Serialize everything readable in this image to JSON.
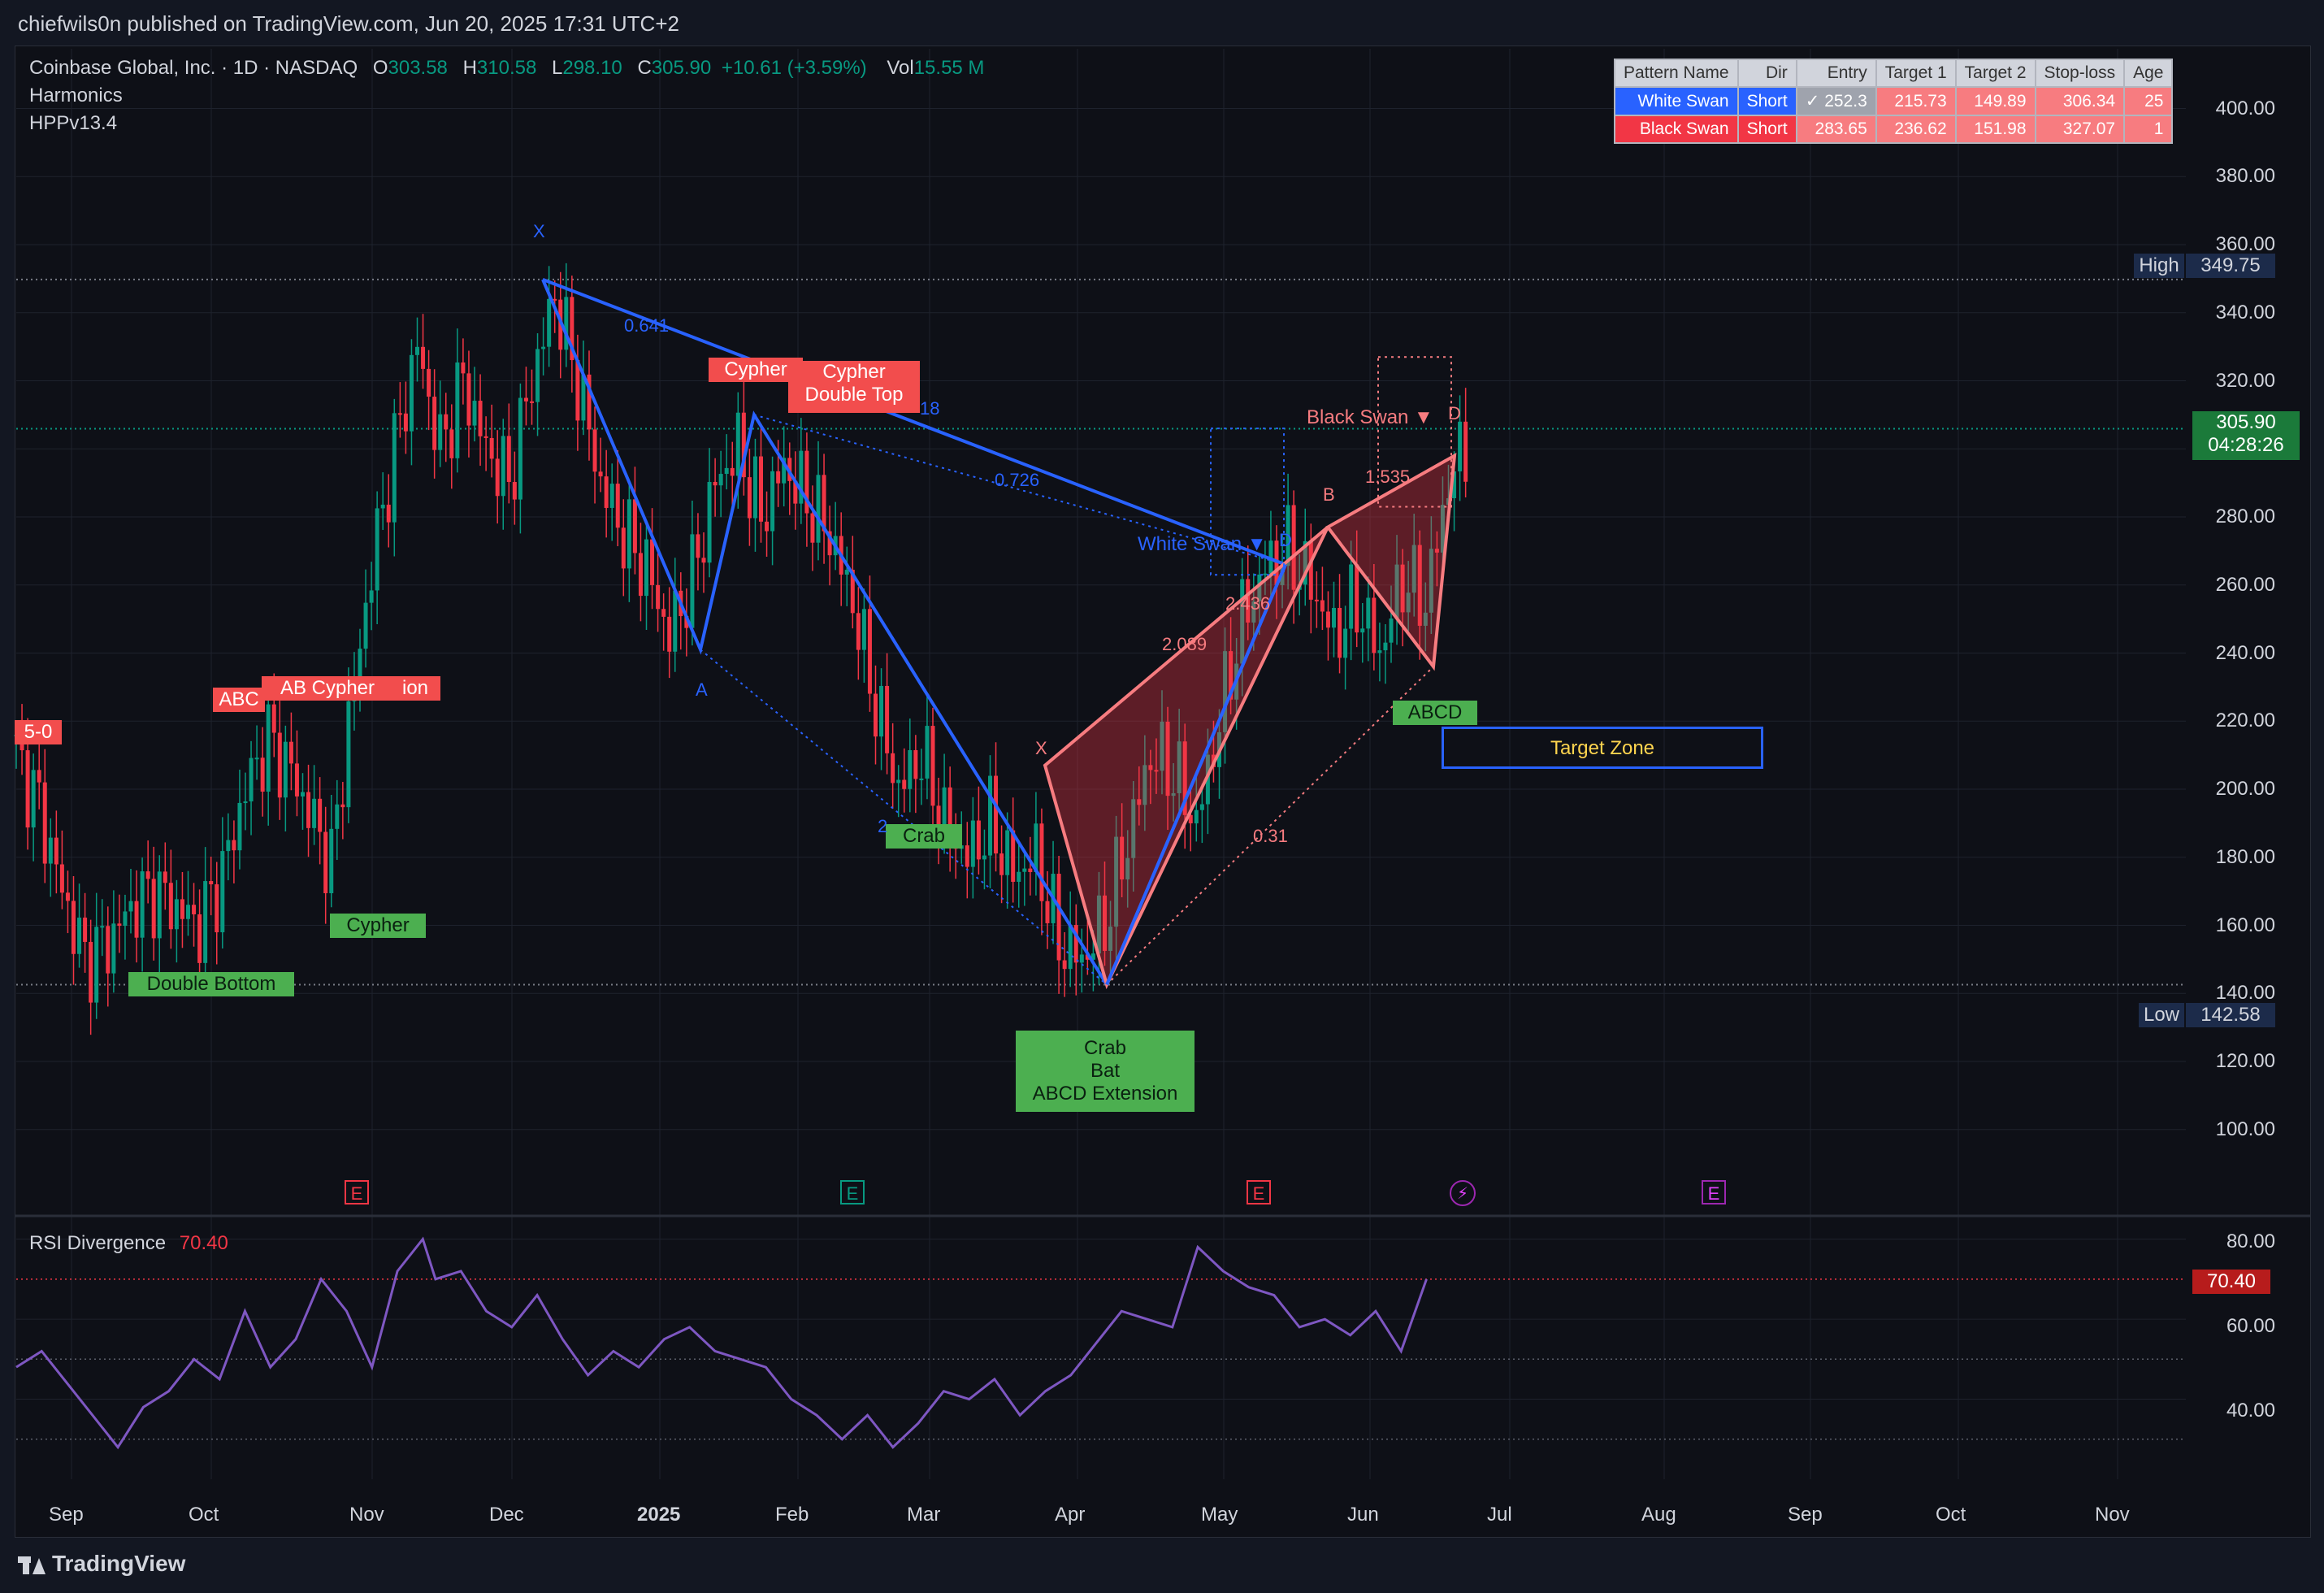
{
  "header": {
    "text": "chiefwils0n published on TradingView.com, Jun 20, 2025 17:31 UTC+2"
  },
  "legend": {
    "symbol": "Coinbase Global, Inc. · 1D · NASDAQ",
    "o_label": "O",
    "o": "303.58",
    "h_label": "H",
    "h": "310.58",
    "l_label": "L",
    "l": "298.10",
    "c_label": "C",
    "c": "305.90",
    "change": "+10.61 (+3.59%)",
    "vol_label": "Vol",
    "vol": "15.55 M",
    "line2": "Harmonics",
    "line3": "HPPv13.4"
  },
  "colors": {
    "up": "#089981",
    "down": "#f23645",
    "blue": "#2962ff",
    "red": "#f77c80",
    "green": "#4caf50",
    "rsi": "#7e57c2"
  },
  "pattern_table": {
    "headers": [
      "Pattern Name",
      "Dir",
      "Entry",
      "Target 1",
      "Target 2",
      "Stop-loss",
      "Age"
    ],
    "rows": [
      [
        "White Swan",
        "Short",
        "✓ 252.3",
        "215.73",
        "149.89",
        "306.34",
        "25"
      ],
      [
        "Black Swan",
        "Short",
        "283.65",
        "236.62",
        "151.98",
        "327.07",
        "1"
      ]
    ]
  },
  "price_labels": {
    "high_label": "High",
    "high": "349.75",
    "low_label": "Low",
    "low": "142.58",
    "last": "305.90",
    "countdown": "04:28:26"
  },
  "pattern_labels": {
    "cypher_top1": "Cypher",
    "cypher_top2": "Cypher",
    "double_top": "Double Top",
    "abc_left": "ABC",
    "ab_cypher": "AB  Cypher",
    "ion": "ion",
    "five0": "5-0",
    "double_bottom": "Double Bottom",
    "cypher_bottom": "Cypher",
    "crab_mid": "Crab",
    "crab_bottom": "Crab",
    "bat_bottom": "Bat",
    "abcd_ext": "ABCD Extension",
    "abcd": "ABCD",
    "target_zone": "Target Zone",
    "white_swan": "White Swan ▼",
    "black_swan": "Black Swan ▼",
    "pt_x_blue": "X",
    "pt_a_blue": "A",
    "pt_d_blue": "D",
    "pt_x_red": "X",
    "pt_b_red": "B",
    "pt_d_red": "D",
    "r_0641": "0.641",
    "r_0726": "0.726",
    "r_18": "18",
    "r_2": "2",
    "r_2089": "2.089",
    "r_2436": "2.436",
    "r_1535": "1.535",
    "r_031": "0.31"
  },
  "earnings_icons": [
    "E",
    "E",
    "E",
    "E"
  ],
  "rsi": {
    "title": "RSI Divergence",
    "value": "70.40",
    "ylim": [
      20,
      85
    ],
    "ticks": [
      "80.00",
      "60.00",
      "40.00"
    ]
  },
  "footer": {
    "logo": "TradingView"
  },
  "chart_data": {
    "type": "candlestick",
    "title": "",
    "ylim": [
      88,
      408
    ],
    "y_ticks": [
      "400.00",
      "380.00",
      "360.00",
      "340.00",
      "320.00",
      "300.00",
      "280.00",
      "260.00",
      "240.00",
      "220.00",
      "200.00",
      "180.00",
      "160.00",
      "140.00",
      "120.00",
      "100.00"
    ],
    "x_ticks": [
      "Sep",
      "Oct",
      "Nov",
      "Dec",
      "2025",
      "Feb",
      "Mar",
      "Apr",
      "May",
      "Jun",
      "Jul",
      "Aug",
      "Sep",
      "Oct",
      "Nov"
    ],
    "series": [
      {
        "name": "Harmonics",
        "close_path": [
          [
            0,
            210
          ],
          [
            4,
            195
          ],
          [
            8,
            170
          ],
          [
            12,
            150
          ],
          [
            16,
            155
          ],
          [
            20,
            165
          ],
          [
            24,
            170
          ],
          [
            28,
            165
          ],
          [
            32,
            160
          ],
          [
            36,
            175
          ],
          [
            40,
            200
          ],
          [
            44,
            215
          ],
          [
            48,
            205
          ],
          [
            52,
            190
          ],
          [
            55,
            178
          ],
          [
            58,
            220
          ],
          [
            62,
            265
          ],
          [
            66,
            300
          ],
          [
            70,
            330
          ],
          [
            74,
            300
          ],
          [
            78,
            320
          ],
          [
            82,
            300
          ],
          [
            86,
            290
          ],
          [
            90,
            320
          ],
          [
            94,
            345
          ],
          [
            98,
            320
          ],
          [
            102,
            290
          ],
          [
            106,
            275
          ],
          [
            110,
            265
          ],
          [
            114,
            245
          ],
          [
            118,
            262
          ],
          [
            122,
            290
          ],
          [
            126,
            300
          ],
          [
            130,
            280
          ],
          [
            134,
            295
          ],
          [
            138,
            285
          ],
          [
            142,
            275
          ],
          [
            146,
            255
          ],
          [
            150,
            225
          ],
          [
            154,
            200
          ],
          [
            158,
            210
          ],
          [
            162,
            190
          ],
          [
            166,
            180
          ],
          [
            170,
            190
          ],
          [
            174,
            175
          ],
          [
            178,
            180
          ],
          [
            182,
            155
          ],
          [
            186,
            150
          ],
          [
            190,
            160
          ],
          [
            194,
            185
          ],
          [
            198,
            210
          ],
          [
            202,
            205
          ],
          [
            206,
            190
          ],
          [
            210,
            220
          ],
          [
            214,
            250
          ],
          [
            218,
            265
          ],
          [
            222,
            270
          ],
          [
            226,
            260
          ],
          [
            230,
            245
          ],
          [
            234,
            255
          ],
          [
            238,
            240
          ],
          [
            242,
            262
          ],
          [
            246,
            255
          ],
          [
            250,
            290
          ],
          [
            254,
            305
          ]
        ]
      }
    ]
  }
}
